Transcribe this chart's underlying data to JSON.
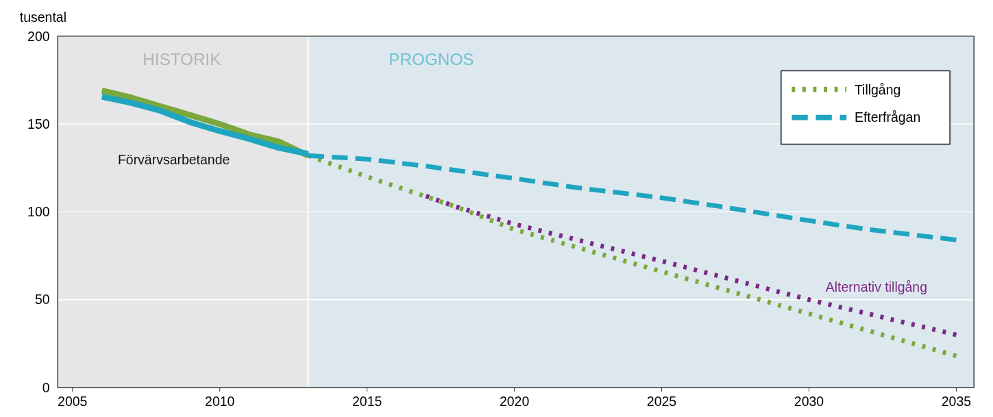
{
  "chart_data": {
    "type": "line",
    "ylabel": "tusental",
    "xlim": [
      2004.5,
      2035.6
    ],
    "ylim": [
      0,
      200
    ],
    "xticks": [
      2005,
      2010,
      2015,
      2020,
      2025,
      2030,
      2035
    ],
    "yticks": [
      0,
      50,
      100,
      150,
      200
    ],
    "grid": "y",
    "legend": "top right",
    "bands": [
      {
        "axis": "x",
        "from": 2004.5,
        "to": 2013,
        "label": "HISTORIK",
        "color": "#e6e6e8"
      },
      {
        "axis": "x",
        "from": 2013,
        "to": 2035.6,
        "label": "PROGNOS",
        "color": "#dde8ee"
      }
    ],
    "ref_lines": [
      {
        "axis": "x",
        "value": 2013,
        "color": "#ffffff"
      }
    ],
    "annotations": [
      "Förvärvsarbetande",
      "Alternativ tillgång"
    ],
    "series": [
      {
        "color": "#7ba83c",
        "line_style": "solid",
        "x": [
          2006,
          2007,
          2008,
          2009,
          2010,
          2011,
          2012,
          2013
        ],
        "values": [
          169,
          165,
          160,
          155,
          150,
          144,
          140,
          132
        ]
      },
      {
        "color": "#1fa5bf",
        "line_style": "solid",
        "x": [
          2006,
          2007,
          2008,
          2009,
          2010,
          2011,
          2012,
          2013
        ],
        "values": [
          165.5,
          162,
          157.5,
          151,
          146,
          141.5,
          136.5,
          133
        ]
      },
      {
        "name": "Tillgång",
        "color": "#7ba83c",
        "line_style": "dotted",
        "x": [
          2013,
          2015,
          2018,
          2020,
          2025,
          2030,
          2035
        ],
        "values": [
          132,
          120,
          103,
          90,
          66,
          42,
          18
        ]
      },
      {
        "name": "Efterfrågan",
        "color": "#1fa5bf",
        "line_style": "dashed",
        "x": [
          2013,
          2015,
          2017,
          2020,
          2022,
          2025,
          2027,
          2030,
          2032,
          2034,
          2035
        ],
        "values": [
          132,
          130,
          126,
          119,
          114,
          108,
          103,
          95,
          90,
          86,
          84
        ]
      },
      {
        "color": "#7b2a83",
        "line_style": "dotted",
        "x": [
          2017,
          2018,
          2020,
          2025,
          2030,
          2035
        ],
        "values": [
          109,
          103,
          93,
          72,
          50,
          30
        ]
      }
    ]
  }
}
